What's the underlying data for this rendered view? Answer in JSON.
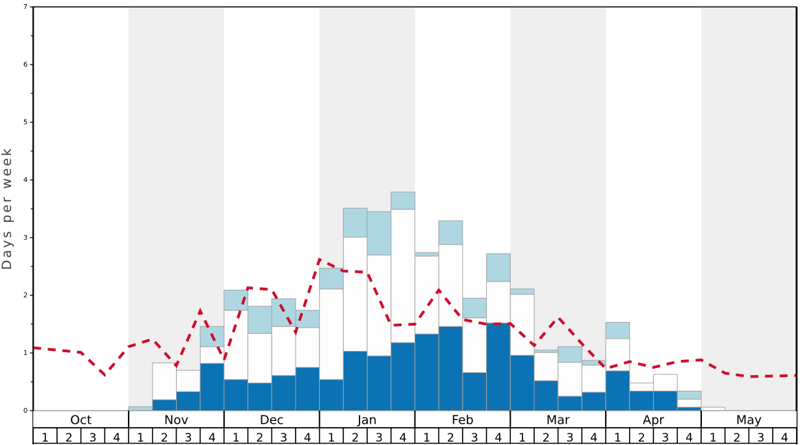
{
  "chart_data": {
    "type": "bar",
    "subtype": "stacked-bars-with-dashed-line",
    "title": "",
    "xlabel": "",
    "ylabel": "Days per week",
    "ylim": [
      0,
      7
    ],
    "yticks": [
      0,
      1,
      2,
      3,
      4,
      5,
      6,
      7
    ],
    "minor_ytick_step": 0.5,
    "grid": "off",
    "legend": "none",
    "months": [
      "Oct",
      "Nov",
      "Dec",
      "Jan",
      "Feb",
      "Mar",
      "Apr",
      "May"
    ],
    "week_labels": [
      "1",
      "2",
      "3",
      "4"
    ],
    "shaded_months": [
      "Nov",
      "Jan",
      "Mar",
      "May"
    ],
    "categories": [
      "Oct-1",
      "Oct-2",
      "Oct-3",
      "Oct-4",
      "Nov-1",
      "Nov-2",
      "Nov-3",
      "Nov-4",
      "Dec-1",
      "Dec-2",
      "Dec-3",
      "Dec-4",
      "Jan-1",
      "Jan-2",
      "Jan-3",
      "Jan-4",
      "Feb-1",
      "Feb-2",
      "Feb-3",
      "Feb-4",
      "Mar-1",
      "Mar-2",
      "Mar-3",
      "Mar-4",
      "Apr-1",
      "Apr-2",
      "Apr-3",
      "Apr-4",
      "May-1",
      "May-2",
      "May-3",
      "May-4"
    ],
    "series": [
      {
        "name": "bottom-segment-dark-blue",
        "color": "#0b72b4",
        "values": [
          0,
          0,
          0,
          0,
          0,
          0.19,
          0.33,
          0.82,
          0.54,
          0.48,
          0.61,
          0.75,
          0.54,
          1.03,
          0.95,
          1.18,
          1.33,
          1.46,
          0.66,
          1.52,
          0.96,
          0.52,
          0.25,
          0.32,
          0.69,
          0.34,
          0.34,
          0.06,
          0,
          0,
          0,
          0
        ]
      },
      {
        "name": "middle-segment-white",
        "color": "#fdfdfd",
        "values": [
          0,
          0,
          0,
          0,
          0,
          0.64,
          0.37,
          0.29,
          1.2,
          0.86,
          0.85,
          0.69,
          1.57,
          1.98,
          1.75,
          2.31,
          1.35,
          1.42,
          0.95,
          0.72,
          1.06,
          0.49,
          0.59,
          0.47,
          0.56,
          0.14,
          0.29,
          0.14,
          0.06,
          0,
          0,
          0
        ]
      },
      {
        "name": "top-segment-light-blue",
        "color": "#aed7e2",
        "values": [
          0,
          0,
          0,
          0,
          0.07,
          0,
          0,
          0.35,
          0.35,
          0.47,
          0.48,
          0.3,
          0.36,
          0.5,
          0.75,
          0.3,
          0.06,
          0.41,
          0.34,
          0.48,
          0.09,
          0.04,
          0.27,
          0.08,
          0.28,
          0,
          0,
          0.14,
          0,
          0,
          0,
          0
        ]
      }
    ],
    "line": {
      "name": "dashed-red-line",
      "color": "#cd0e2c",
      "style": "dashed",
      "points_at": "week-boundaries",
      "values": [
        1.09,
        1.05,
        1.01,
        0.62,
        1.11,
        1.24,
        0.78,
        1.73,
        0.88,
        2.13,
        2.1,
        1.36,
        2.62,
        2.42,
        2.4,
        1.48,
        1.5,
        2.09,
        1.58,
        1.5,
        1.51,
        1.13,
        1.62,
        1.16,
        0.73,
        0.85,
        0.75,
        0.85,
        0.88,
        0.65,
        0.59,
        0.6,
        0.61
      ]
    },
    "colors": {
      "bar_dark_blue": "#0b72b4",
      "bar_white": "#fdfdfd",
      "bar_light_blue": "#aed7e2",
      "bar_border": "#a3a3a3",
      "line_red": "#cd0e2c",
      "band_gray": "#efefef",
      "axis_black": "#000000",
      "baseline_gray": "#888888",
      "ylabel_gray": "#3f3f3f",
      "background": "#ffffff"
    }
  }
}
